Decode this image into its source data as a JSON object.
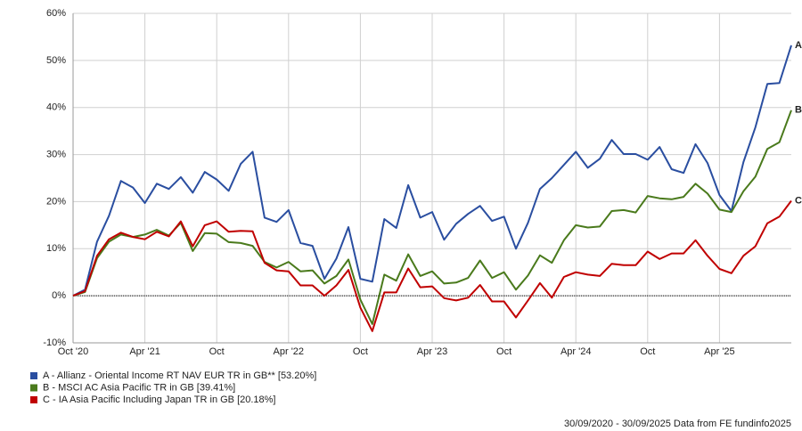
{
  "chart_data": {
    "type": "line",
    "categories": [
      "Oct '20",
      null,
      null,
      null,
      null,
      null,
      "Apr '21",
      null,
      null,
      null,
      null,
      null,
      "Oct",
      null,
      null,
      null,
      null,
      null,
      "Apr '22",
      null,
      null,
      null,
      null,
      null,
      "Oct",
      null,
      null,
      null,
      null,
      null,
      "Apr '23",
      null,
      null,
      null,
      null,
      null,
      "Oct",
      null,
      null,
      null,
      null,
      null,
      "Apr '24",
      null,
      null,
      null,
      null,
      null,
      "Oct",
      null,
      null,
      null,
      null,
      null,
      "Apr '25",
      null,
      null,
      null,
      null,
      null,
      null
    ],
    "ylim": [
      -10,
      60
    ],
    "yticks": [
      {
        "value": -10,
        "label": "-10%"
      },
      {
        "value": 0,
        "label": "0%"
      },
      {
        "value": 10,
        "label": "10%"
      },
      {
        "value": 20,
        "label": "20%"
      },
      {
        "value": 30,
        "label": "30%"
      },
      {
        "value": 40,
        "label": "40%"
      },
      {
        "value": 50,
        "label": "50%"
      },
      {
        "value": 60,
        "label": "60%"
      }
    ],
    "grid": true,
    "series": [
      {
        "name": "A - Allianz - Oriental Income RT NAV EUR TR in GB** [53.20%]",
        "end_label": "A",
        "color": "#2a4ea0",
        "values": [
          0,
          1.3,
          11.5,
          17,
          24.4,
          23,
          19.7,
          23.8,
          22.7,
          25.2,
          21.9,
          26.3,
          24.7,
          22.3,
          28,
          30.6,
          16.6,
          15.7,
          18.2,
          11.2,
          10.6,
          3.6,
          7.9,
          14.6,
          3.6,
          3,
          16.3,
          14.4,
          23.5,
          16.6,
          17.8,
          11.9,
          15.3,
          17.4,
          19.1,
          15.9,
          16.8,
          10,
          15.5,
          22.7,
          25,
          27.8,
          30.6,
          27.2,
          29.1,
          33.1,
          30.1,
          30.1,
          28.9,
          31.6,
          26.9,
          26.1,
          32.2,
          28.2,
          21.4,
          18,
          28.4,
          35.8,
          45,
          45.2,
          53.2
        ]
      },
      {
        "name": "B - MSCI AC Asia Pacific TR in GB [39.41%]",
        "end_label": "B",
        "color": "#4a7a1c",
        "values": [
          0,
          0.8,
          8,
          11.5,
          13,
          12.5,
          13,
          14,
          12.8,
          15.5,
          9.5,
          13.3,
          13.2,
          11.4,
          11.2,
          10.6,
          7.2,
          6,
          7.2,
          5.2,
          5.4,
          2.6,
          4.2,
          7.7,
          -0.8,
          -6,
          4.5,
          3.2,
          8.8,
          4.2,
          5.2,
          2.6,
          2.8,
          3.8,
          7.5,
          3.8,
          5,
          1.3,
          4.3,
          8.6,
          7,
          11.8,
          15,
          14.5,
          14.7,
          18,
          18.2,
          17.7,
          21.2,
          20.7,
          20.5,
          21,
          23.8,
          21.7,
          18.3,
          17.8,
          22.2,
          25.3,
          31.2,
          32.6,
          39.41
        ]
      },
      {
        "name": "C - IA Asia Pacific Including Japan TR in GB [20.18%]",
        "end_label": "C",
        "color": "#c00000",
        "values": [
          0,
          1,
          8.5,
          12,
          13.4,
          12.5,
          12,
          13.6,
          12.6,
          15.8,
          10.5,
          15,
          15.8,
          13.6,
          13.8,
          13.7,
          7,
          5.4,
          5.2,
          2.2,
          2.2,
          0,
          2.2,
          5.5,
          -2.5,
          -7.5,
          0.7,
          0.7,
          5.8,
          1.8,
          2,
          -0.5,
          -1,
          -0.4,
          2.3,
          -1.2,
          -1.2,
          -4.6,
          -1,
          2.7,
          -0.4,
          4,
          5,
          4.5,
          4.2,
          6.8,
          6.5,
          6.5,
          9.4,
          7.8,
          9,
          9,
          11.8,
          8.5,
          5.7,
          4.8,
          8.5,
          10.5,
          15.4,
          16.8,
          20.18
        ]
      }
    ],
    "footer": "30/09/2020 - 30/09/2025 Data from FE fundinfo2025"
  }
}
